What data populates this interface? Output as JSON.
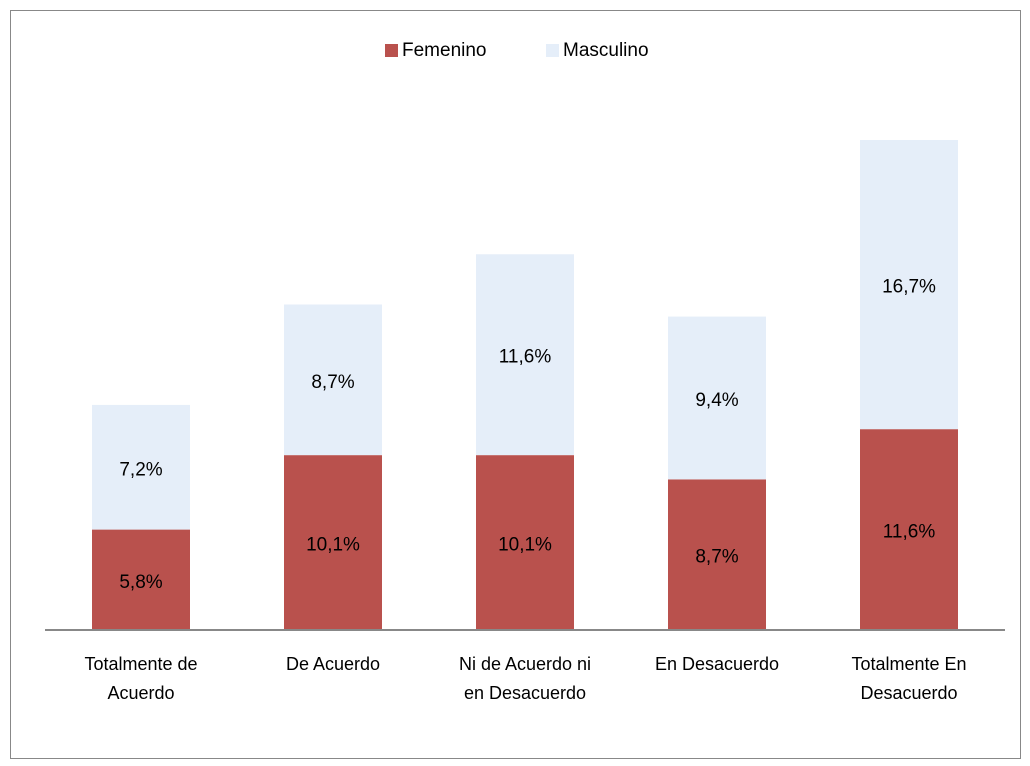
{
  "chart_data": {
    "type": "stacked_bar",
    "categories": [
      "Totalmente de Acuerdo",
      "De Acuerdo",
      "Ni de Acuerdo ni en Desacuerdo",
      "En Desacuerdo",
      "Totalmente En Desacuerdo"
    ],
    "series": [
      {
        "name": "Femenino",
        "color": "#b9514d",
        "values": [
          5.8,
          10.1,
          10.1,
          8.7,
          11.6
        ],
        "value_labels": [
          "5,8%",
          "10,1%",
          "10,1%",
          "8,7%",
          "11,6%"
        ]
      },
      {
        "name": "Masculino",
        "color": "#e5eef9",
        "values": [
          7.2,
          8.7,
          11.6,
          9.4,
          16.7
        ],
        "value_labels": [
          "7,2%",
          "8,7%",
          "11,6%",
          "9,4%",
          "16,7%"
        ]
      }
    ],
    "legend": "top"
  }
}
